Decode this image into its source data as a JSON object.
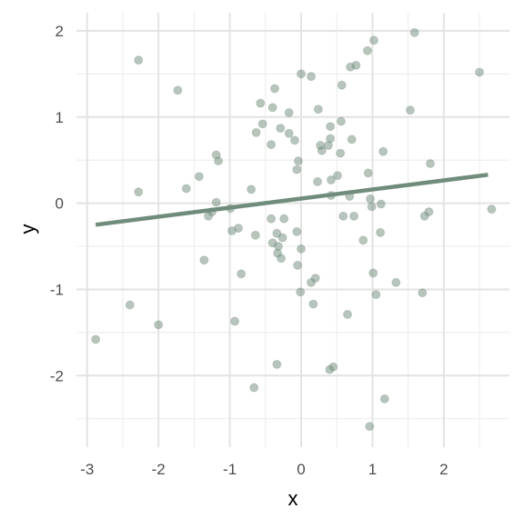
{
  "chart_data": {
    "type": "scatter",
    "x_label": "x",
    "y_label": "y",
    "x": [
      -2.28,
      -1.73,
      -2.28,
      -2.88,
      -2.4,
      -2.0,
      -1.61,
      -1.43,
      -1.19,
      -1.16,
      -1.19,
      -1.25,
      -1.3,
      -1.36,
      -0.99,
      -0.97,
      -0.88,
      -0.84,
      -0.93,
      -0.7,
      -0.66,
      -0.63,
      -0.64,
      -0.57,
      -0.54,
      -0.42,
      -0.4,
      -0.37,
      -0.42,
      -0.4,
      -0.34,
      -0.32,
      -0.33,
      -0.28,
      -0.34,
      -0.29,
      -0.24,
      -0.26,
      -0.17,
      -0.17,
      -0.09,
      -0.06,
      -0.04,
      -0.06,
      -0.05,
      0.0,
      0.0,
      0.14,
      -0.01,
      0.14,
      0.2,
      0.17,
      0.24,
      0.23,
      0.27,
      0.29,
      0.38,
      0.41,
      0.41,
      0.42,
      0.42,
      0.4,
      0.45,
      0.51,
      0.55,
      0.56,
      0.57,
      0.59,
      0.68,
      0.71,
      0.69,
      0.77,
      0.74,
      0.65,
      0.87,
      0.93,
      1.02,
      0.94,
      0.97,
      0.99,
      1.01,
      1.05,
      0.96,
      1.12,
      1.15,
      1.11,
      1.17,
      1.33,
      1.53,
      1.59,
      1.7,
      1.73,
      1.79,
      1.81,
      2.5,
      2.67
    ],
    "y": [
      1.66,
      1.31,
      0.13,
      -1.58,
      -1.18,
      -1.41,
      0.17,
      0.31,
      0.56,
      0.49,
      0.01,
      -0.1,
      -0.15,
      -0.66,
      -0.06,
      -0.32,
      -0.29,
      -0.82,
      -1.37,
      0.16,
      -2.14,
      0.82,
      -0.37,
      1.16,
      0.92,
      0.68,
      1.11,
      1.33,
      -0.18,
      -0.46,
      -0.35,
      -0.5,
      -0.58,
      -0.64,
      -1.87,
      0.87,
      -0.18,
      -0.4,
      1.05,
      0.81,
      0.73,
      0.39,
      0.49,
      -0.33,
      -0.72,
      -0.53,
      1.5,
      1.47,
      -1.03,
      -0.92,
      -0.87,
      -1.17,
      1.09,
      0.25,
      0.67,
      0.61,
      0.67,
      0.75,
      0.89,
      0.27,
      0.09,
      -1.93,
      -1.9,
      0.32,
      0.58,
      0.95,
      1.37,
      -0.15,
      0.08,
      0.74,
      1.58,
      1.6,
      -0.15,
      -1.29,
      -0.43,
      1.77,
      1.89,
      0.35,
      0.05,
      -0.04,
      -0.81,
      -1.06,
      -2.59,
      -0.01,
      0.6,
      -0.34,
      -2.27,
      -0.92,
      1.08,
      1.98,
      -1.04,
      -0.15,
      -0.1,
      0.46,
      1.52,
      -0.07
    ],
    "color": "#6f8c7c",
    "fit": {
      "x": [
        -2.88,
        2.62
      ],
      "y": [
        -0.25,
        0.33
      ]
    },
    "xlim": [
      -3.15,
      2.92
    ],
    "ylim": [
      -2.83,
      2.21
    ],
    "xticks": [
      -3,
      -2,
      -1,
      0,
      1,
      2
    ],
    "yticks": [
      -2,
      -1,
      0,
      1,
      2
    ],
    "grid": true
  }
}
